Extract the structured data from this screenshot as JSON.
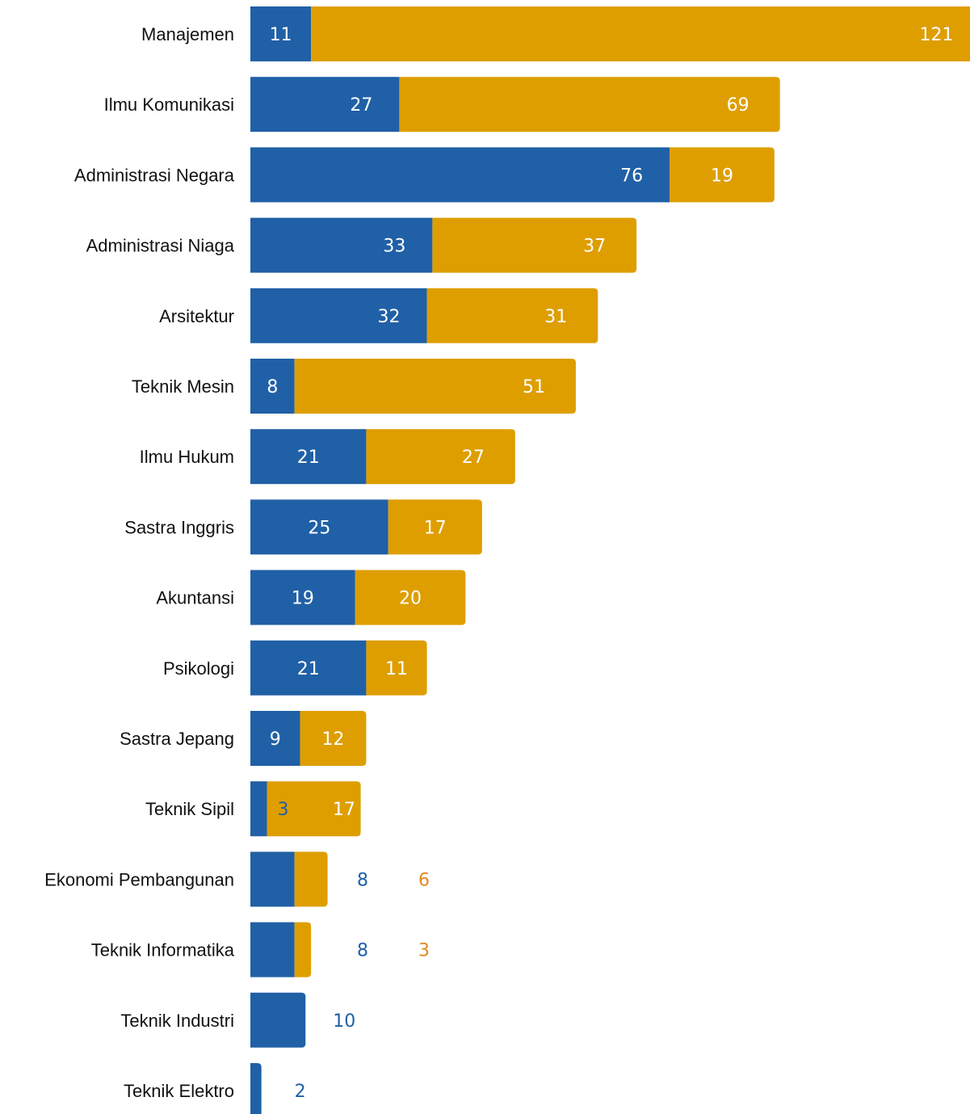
{
  "chart_data": {
    "type": "bar",
    "orientation": "horizontal",
    "stacked": true,
    "categories": [
      "Manajemen",
      "Ilmu Komunikasi",
      "Administrasi Negara",
      "Administrasi Niaga",
      "Arsitektur",
      "Teknik Mesin",
      "Ilmu Hukum",
      "Sastra Inggris",
      "Akuntansi",
      "Psikologi",
      "Sastra Jepang",
      "Teknik Sipil",
      "Ekonomi Pembangunan",
      "Teknik Informatika",
      "Teknik Industri",
      "Teknik Elektro"
    ],
    "series": [
      {
        "color": "#2060A6",
        "values": [
          11,
          27,
          76,
          33,
          32,
          8,
          21,
          25,
          19,
          21,
          9,
          3,
          8,
          8,
          10,
          2
        ]
      },
      {
        "color": "#DE9E00",
        "values": [
          121,
          69,
          19,
          37,
          31,
          51,
          27,
          17,
          20,
          11,
          12,
          17,
          6,
          3,
          0,
          0
        ]
      }
    ],
    "value_labels": {
      "inside_color": "#ffffff",
      "outside_colors": [
        "#2060A6",
        "#E08A1E"
      ]
    },
    "grid": false,
    "legend": "none",
    "title": "",
    "xlabel": "",
    "ylabel": "",
    "xlim": [
      0,
      132
    ]
  }
}
